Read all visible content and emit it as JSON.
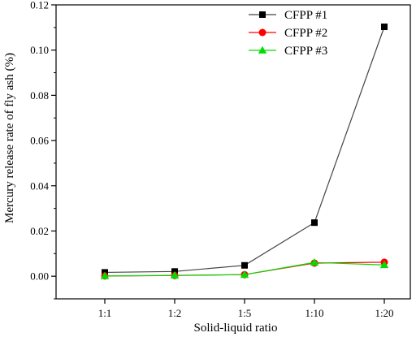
{
  "chart_data": {
    "type": "line",
    "title": "",
    "xlabel": "Solid-liquid ratio",
    "ylabel": "Mercury release rate of fly ash (%)",
    "categories": [
      "1:1",
      "1:2",
      "1:5",
      "1:10",
      "1:20"
    ],
    "ylim": [
      -0.01,
      0.12
    ],
    "yticks": [
      "0.00",
      "0.02",
      "0.04",
      "0.06",
      "0.08",
      "0.10",
      "0.12"
    ],
    "grid": false,
    "legend_position": "top-right",
    "series": [
      {
        "name": "CFPP #1",
        "color": "#000000",
        "line_color": "#444444",
        "marker": "square",
        "values": [
          0.0017,
          0.0021,
          0.0048,
          0.0237,
          0.1103
        ]
      },
      {
        "name": "CFPP #2",
        "color": "#ff0000",
        "line_color": "#ff0000",
        "marker": "circle",
        "values": [
          0.0001,
          0.0003,
          0.0007,
          0.0058,
          0.0062
        ]
      },
      {
        "name": "CFPP #3",
        "color": "#00dd00",
        "line_color": "#00dd00",
        "marker": "triangle",
        "values": [
          0.0001,
          0.0004,
          0.0007,
          0.0061,
          0.005
        ]
      }
    ]
  }
}
